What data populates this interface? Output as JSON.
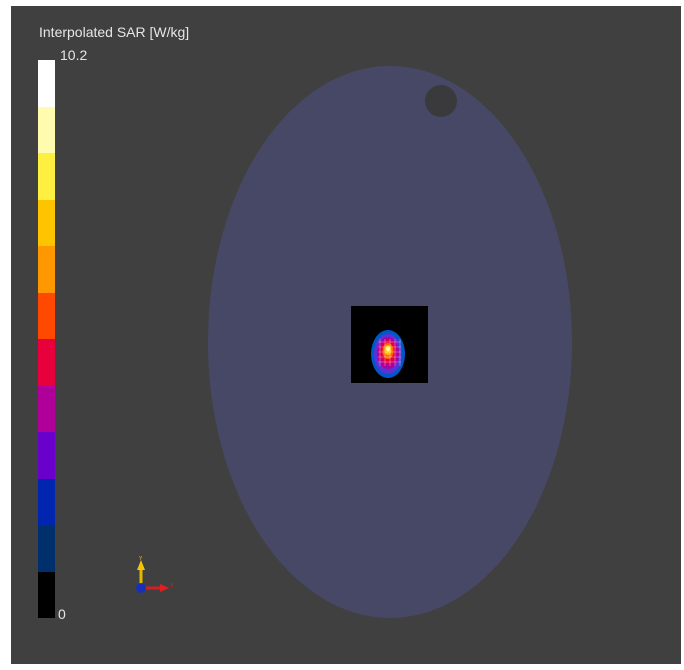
{
  "legend": {
    "title": "Interpolated SAR [W/kg]",
    "max_label": "10.2",
    "min_label": "0",
    "colors": [
      "#ffffff",
      "#fffcb0",
      "#ffef40",
      "#ffc400",
      "#ff9800",
      "#ff4800",
      "#e8003c",
      "#b0009a",
      "#6a00cc",
      "#0026b0",
      "#00306c",
      "#000000"
    ]
  },
  "scene": {
    "background_color": "#404040",
    "phantom_color": "#474866",
    "hole_color": "#3a3a3d",
    "measurement_area_color": "#000000"
  },
  "axes": {
    "y_label": "Y",
    "x_label": "X"
  }
}
